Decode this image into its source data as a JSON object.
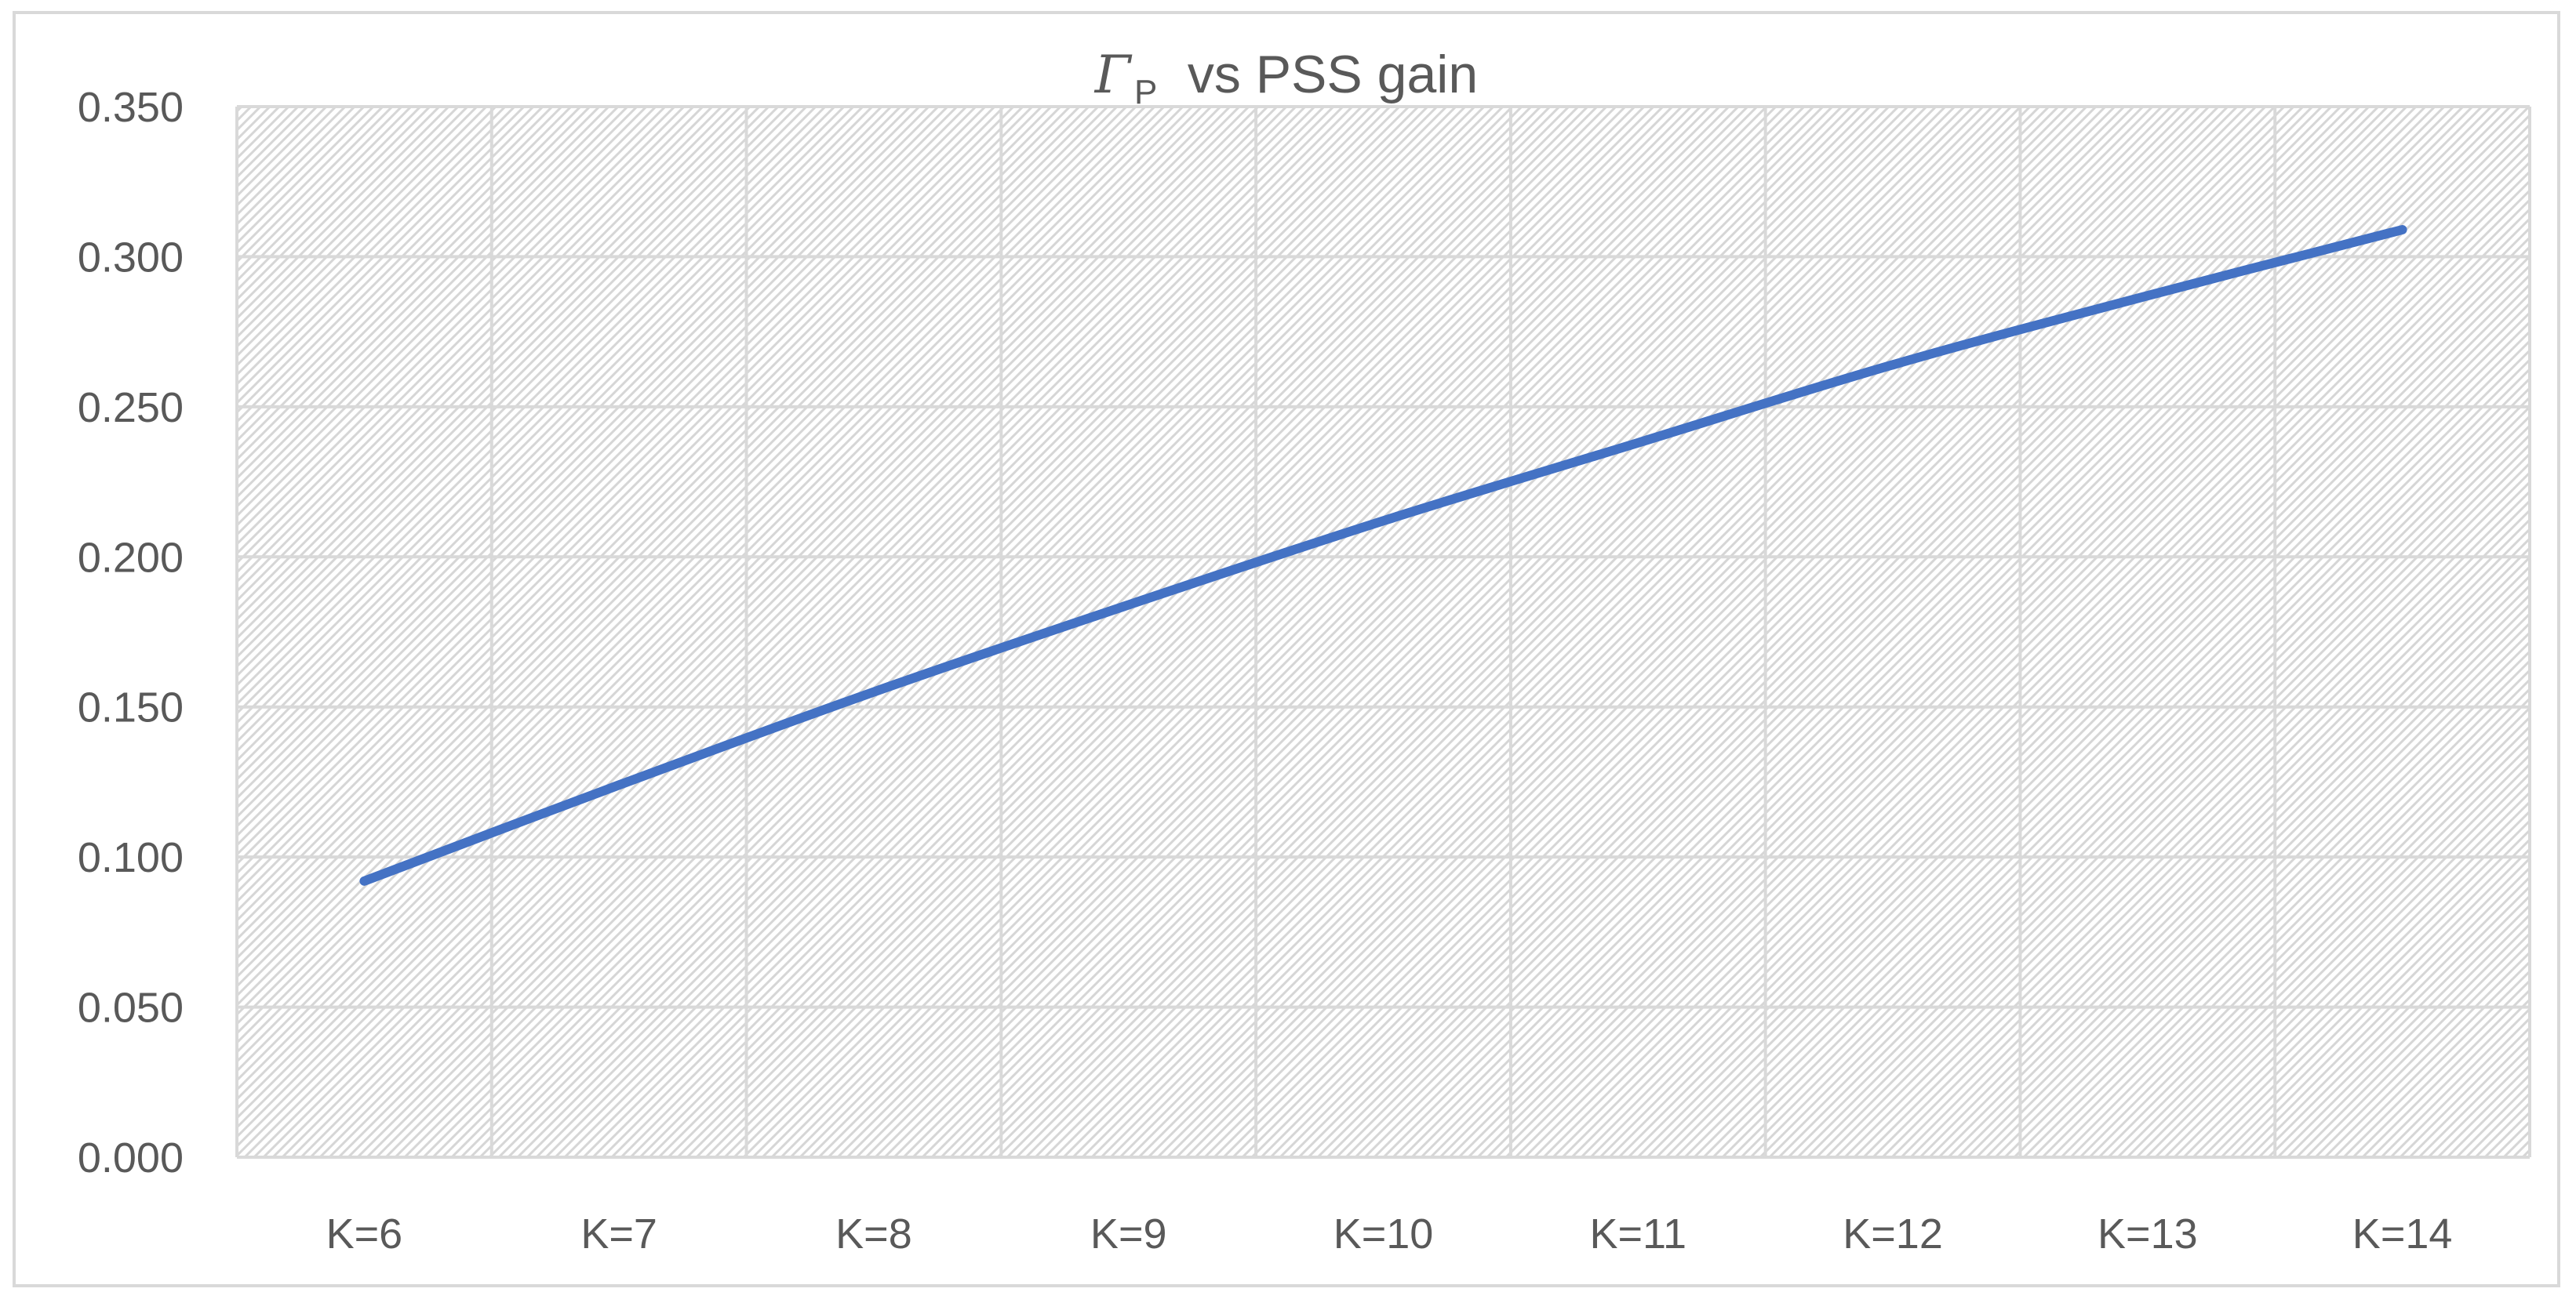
{
  "chart_data": {
    "type": "line",
    "title": {
      "symbol": "Γ",
      "subscript": "P",
      "text": "vs PSS gain"
    },
    "xlabel": "",
    "ylabel": "",
    "categories": [
      "K=6",
      "K=7",
      "K=8",
      "K=9",
      "K=10",
      "K=11",
      "K=12",
      "K=13",
      "K=14"
    ],
    "series": [
      {
        "values": [
          0.092,
          0.124,
          0.155,
          0.184,
          0.212,
          0.238,
          0.264,
          0.287,
          0.309
        ]
      }
    ],
    "ylim": [
      0,
      0.35
    ],
    "yticks": [
      "0.000",
      "0.050",
      "0.100",
      "0.150",
      "0.200",
      "0.250",
      "0.300",
      "0.350"
    ],
    "grid": true,
    "plot_pattern": "diagonal-hatch",
    "legend": "none",
    "colors": {
      "line": "#4472C4",
      "grid": "#d9d9d9",
      "hatch": "#d3d3d3",
      "text": "#595959"
    }
  }
}
